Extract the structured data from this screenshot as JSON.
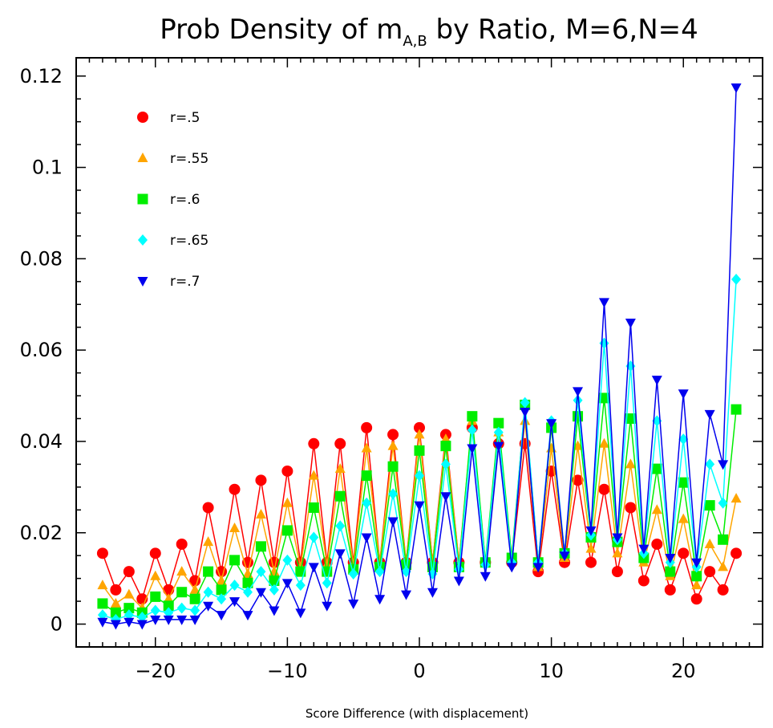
{
  "chart_data": {
    "type": "line",
    "title": {
      "prefix": "Prob Density of m",
      "subscript": "A,B",
      "suffix": " by Ratio, M=6,N=4"
    },
    "xlabel": "Score Difference (with displacement)",
    "ylabel": "",
    "xlim": [
      -26,
      26
    ],
    "ylim": [
      -0.005,
      0.124
    ],
    "xticks": [
      -20,
      -10,
      0,
      10,
      20
    ],
    "xtick_labels": [
      "−20",
      "−10",
      "0",
      "10",
      "20"
    ],
    "yticks": [
      0,
      0.02,
      0.04,
      0.06,
      0.08,
      0.1,
      0.12
    ],
    "ytick_labels": [
      "0",
      "0.02",
      "0.04",
      "0.06",
      "0.08",
      "0.1",
      "0.12"
    ],
    "grid": false,
    "legend_position": "top-left",
    "x": [
      -24,
      -23,
      -22,
      -21,
      -20,
      -19,
      -18,
      -17,
      -16,
      -15,
      -14,
      -13,
      -12,
      -11,
      -10,
      -9,
      -8,
      -7,
      -6,
      -5,
      -4,
      -3,
      -2,
      -1,
      0,
      1,
      2,
      3,
      4,
      5,
      6,
      7,
      8,
      9,
      10,
      11,
      12,
      13,
      14,
      15,
      16,
      17,
      18,
      19,
      20,
      21,
      22,
      23,
      24
    ],
    "series": [
      {
        "name": "r=.5",
        "color": "#ff0000",
        "marker": "circle",
        "values": [
          0.0155,
          0.0075,
          0.0115,
          0.0055,
          0.0155,
          0.0075,
          0.0175,
          0.0095,
          0.0255,
          0.0115,
          0.0295,
          0.0135,
          0.0315,
          0.0135,
          0.0335,
          0.0135,
          0.0395,
          0.0135,
          0.0395,
          0.0135,
          0.043,
          0.0135,
          0.0415,
          0.0135,
          0.043,
          0.0135,
          0.0415,
          0.0135,
          0.043,
          0.0135,
          0.0395,
          0.0135,
          0.0395,
          0.0115,
          0.0335,
          0.0135,
          0.0315,
          0.0135,
          0.0295,
          0.0115,
          0.0255,
          0.0095,
          0.0175,
          0.0075,
          0.0155,
          0.0055,
          0.0115,
          0.0075,
          0.0155
        ]
      },
      {
        "name": "r=.55",
        "color": "#ffa500",
        "marker": "triangle-up",
        "values": [
          0.0085,
          0.0045,
          0.0065,
          0.0035,
          0.0105,
          0.0055,
          0.0115,
          0.0075,
          0.018,
          0.0095,
          0.021,
          0.011,
          0.024,
          0.0115,
          0.0265,
          0.0125,
          0.0325,
          0.013,
          0.034,
          0.013,
          0.0385,
          0.0135,
          0.039,
          0.0135,
          0.0415,
          0.0135,
          0.0405,
          0.0135,
          0.0445,
          0.0135,
          0.042,
          0.0145,
          0.0445,
          0.0125,
          0.0385,
          0.0145,
          0.039,
          0.0165,
          0.0395,
          0.0155,
          0.035,
          0.0135,
          0.025,
          0.0105,
          0.023,
          0.0085,
          0.0175,
          0.0125,
          0.0275
        ]
      },
      {
        "name": "r=.6",
        "color": "#00ee00",
        "marker": "square",
        "values": [
          0.0045,
          0.0025,
          0.0035,
          0.0025,
          0.006,
          0.004,
          0.007,
          0.0055,
          0.0115,
          0.0075,
          0.014,
          0.009,
          0.017,
          0.0095,
          0.0205,
          0.0115,
          0.0255,
          0.0115,
          0.028,
          0.012,
          0.0325,
          0.0125,
          0.0345,
          0.013,
          0.038,
          0.0125,
          0.039,
          0.0125,
          0.0455,
          0.0135,
          0.044,
          0.0145,
          0.048,
          0.0135,
          0.043,
          0.0155,
          0.0455,
          0.019,
          0.0495,
          0.018,
          0.045,
          0.0145,
          0.034,
          0.0115,
          0.031,
          0.0105,
          0.026,
          0.0185,
          0.047
        ]
      },
      {
        "name": "r=.65",
        "color": "#00ffff",
        "marker": "diamond",
        "values": [
          0.002,
          0.001,
          0.002,
          0.0015,
          0.003,
          0.0025,
          0.0035,
          0.003,
          0.007,
          0.0055,
          0.0085,
          0.007,
          0.0115,
          0.0075,
          0.014,
          0.0085,
          0.019,
          0.009,
          0.0215,
          0.011,
          0.0265,
          0.0115,
          0.0285,
          0.0115,
          0.0325,
          0.011,
          0.035,
          0.012,
          0.0425,
          0.013,
          0.042,
          0.0135,
          0.0485,
          0.0135,
          0.0445,
          0.0155,
          0.049,
          0.0195,
          0.0615,
          0.0185,
          0.0565,
          0.0155,
          0.0445,
          0.0135,
          0.0405,
          0.0125,
          0.035,
          0.0265,
          0.0755
        ]
      },
      {
        "name": "r=.7",
        "color": "#0000ee",
        "marker": "triangle-down",
        "values": [
          0.0005,
          0.0,
          0.0005,
          0.0,
          0.001,
          0.001,
          0.001,
          0.001,
          0.004,
          0.002,
          0.005,
          0.002,
          0.007,
          0.003,
          0.009,
          0.0025,
          0.0125,
          0.004,
          0.0155,
          0.0045,
          0.019,
          0.0055,
          0.0225,
          0.0065,
          0.026,
          0.007,
          0.028,
          0.0095,
          0.0385,
          0.0105,
          0.039,
          0.0125,
          0.0465,
          0.0125,
          0.044,
          0.015,
          0.051,
          0.0205,
          0.0705,
          0.019,
          0.066,
          0.0165,
          0.0535,
          0.0145,
          0.0505,
          0.0135,
          0.046,
          0.035,
          0.1175
        ]
      }
    ]
  }
}
